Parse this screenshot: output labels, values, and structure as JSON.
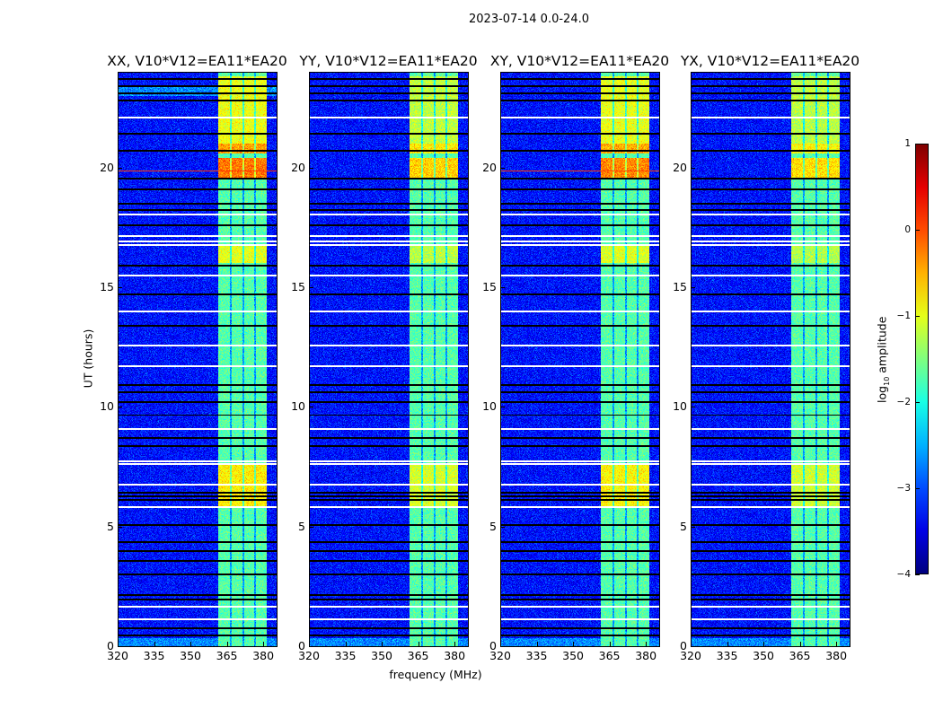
{
  "chart_data": {
    "type": "heatmap",
    "title": "2023-07-14 0.0-24.0",
    "panels": [
      {
        "title": "XX, V10*V12=EA11*EA20",
        "pol": "XX",
        "strength": 1.0,
        "red_line": true
      },
      {
        "title": "YY, V10*V12=EA11*EA20",
        "pol": "YY",
        "strength": 0.7,
        "red_line": false
      },
      {
        "title": "XY, V10*V12=EA11*EA20",
        "pol": "XY",
        "strength": 0.95,
        "red_line": true
      },
      {
        "title": "YX, V10*V12=EA11*EA20",
        "pol": "YX",
        "strength": 0.65,
        "red_line": false
      }
    ],
    "xlabel": "frequency (MHz)",
    "ylabel": "UT (hours)",
    "xlim": [
      320,
      385.5
    ],
    "ylim": [
      0,
      24
    ],
    "xticks": [
      "320",
      "335",
      "350",
      "365",
      "380"
    ],
    "yticks": [
      "0",
      "5",
      "10",
      "15",
      "20"
    ],
    "colorbar": {
      "label_main": "log",
      "label_sub": "10",
      "label_rest": " amplitude",
      "range": [
        -4,
        1
      ],
      "ticks": [
        "−4",
        "−3",
        "−2",
        "−1",
        "0",
        "1"
      ],
      "colormap": "jet"
    },
    "background_level": -3.3,
    "subbands_mhz": [
      [
        361.5,
        366.2
      ],
      [
        367.0,
        371.4
      ],
      [
        372.2,
        376.2
      ],
      [
        377.0,
        381.5
      ]
    ],
    "band_base_level": -1.7,
    "bright_intervals_hours": [
      [
        5.8,
        7.6,
        -0.8
      ],
      [
        16.0,
        16.8,
        -1.0
      ],
      [
        19.5,
        20.4,
        -0.2
      ],
      [
        20.6,
        21.0,
        -0.4
      ],
      [
        21.0,
        23.8,
        -0.95
      ]
    ],
    "flagged_white_hours": [
      22.1,
      18.05,
      17.15,
      16.9,
      16.75,
      15.5,
      14.0,
      12.55,
      11.7,
      9.06,
      7.72,
      7.62,
      6.75,
      5.8,
      1.65,
      1.12
    ],
    "flagged_black_hours": [
      23.7,
      23.4,
      23.1,
      22.8,
      21.4,
      20.7,
      19.55,
      19.1,
      18.5,
      18.24,
      17.6,
      15.9,
      14.7,
      13.4,
      10.9,
      10.6,
      10.2,
      9.66,
      8.7,
      8.35,
      6.4,
      6.25,
      6.1,
      5.05,
      4.35,
      3.97,
      3.56,
      3.0,
      2.13,
      1.95,
      0.75,
      0.45
    ]
  }
}
